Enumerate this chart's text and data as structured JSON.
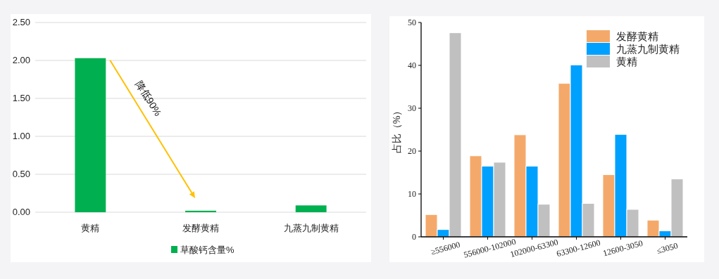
{
  "chart_data": [
    {
      "type": "bar",
      "categories": [
        "黄精",
        "发酵黄精",
        "九蒸九制黄精"
      ],
      "series": [
        {
          "name": "草酸钙含量%",
          "color": "#00b050",
          "values": [
            2.03,
            0.02,
            0.09
          ]
        }
      ],
      "ylim": [
        0,
        2.5
      ],
      "yticks": [
        {
          "value": 0,
          "label": "0.00"
        },
        {
          "value": 0.5,
          "label": "0.50"
        },
        {
          "value": 1,
          "label": "1.00"
        },
        {
          "value": 1.5,
          "label": "1.50"
        },
        {
          "value": 2,
          "label": "2.00"
        },
        {
          "value": 2.5,
          "label": "2.50"
        }
      ],
      "grid": "y",
      "legend": "bottom",
      "annotations": [
        "降低90%"
      ]
    },
    {
      "type": "bar",
      "categories": [
        "≥556000",
        "556000-102000",
        "102000-63300",
        "63300-12600",
        "12600-3050",
        "≤3050"
      ],
      "series": [
        {
          "name": "发酵黄精",
          "color": "#f4a96a",
          "values": [
            5.2,
            18.9,
            23.8,
            35.8,
            14.5,
            3.9
          ]
        },
        {
          "name": "九蒸九制黄精",
          "color": "#00a0ff",
          "values": [
            1.7,
            16.5,
            16.5,
            40.1,
            23.9,
            1.4
          ]
        },
        {
          "name": "黄精",
          "color": "#c0c0c0",
          "values": [
            47.6,
            17.4,
            7.6,
            7.8,
            6.4,
            13.5
          ]
        }
      ],
      "ylim": [
        0,
        50
      ],
      "yticks": [
        0,
        10,
        20,
        30,
        40,
        50
      ],
      "ylabel": "占比（%）",
      "legend": "top right"
    }
  ]
}
